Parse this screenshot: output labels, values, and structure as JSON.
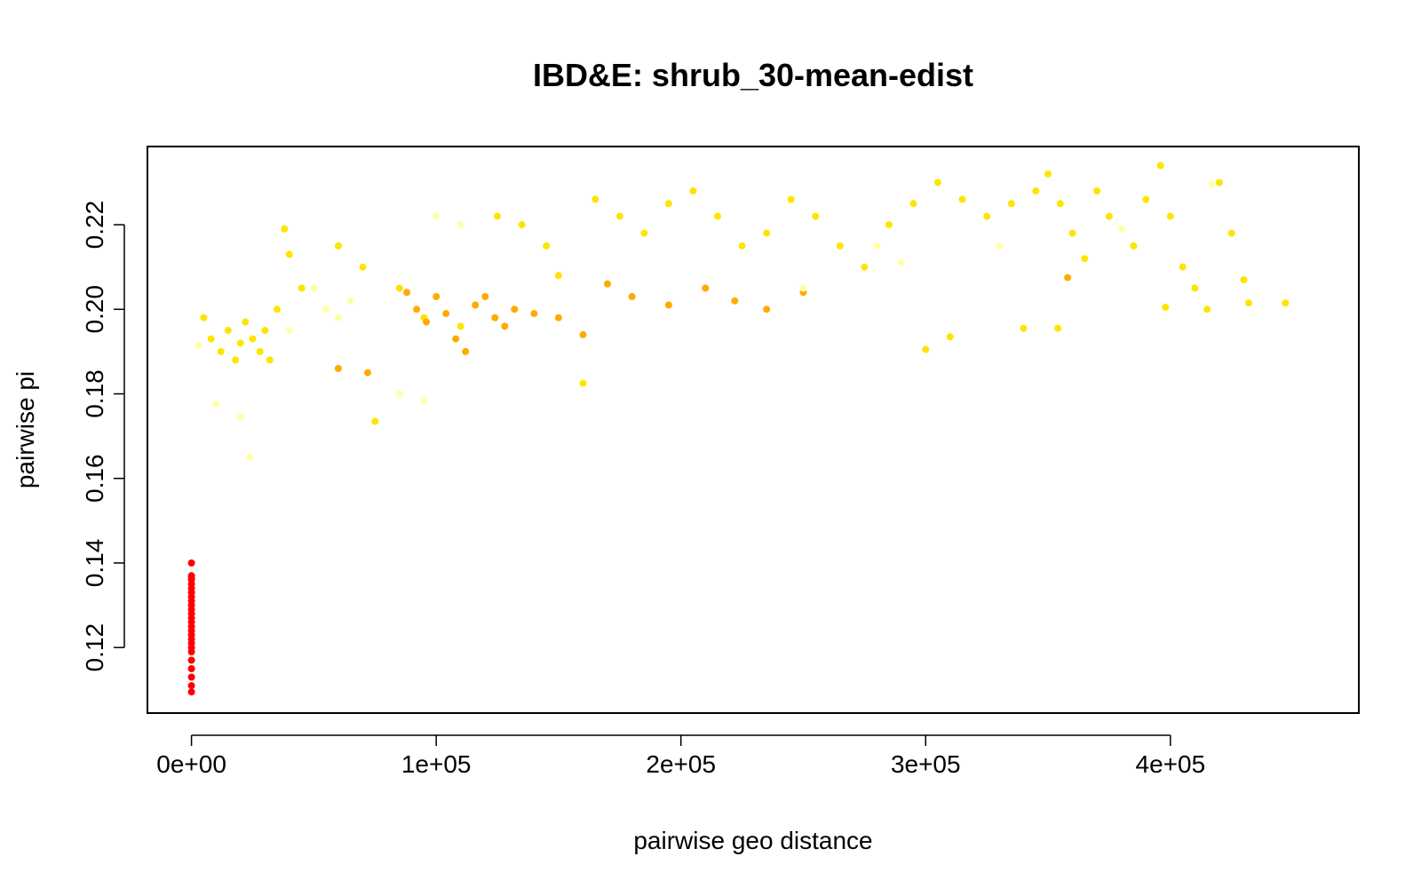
{
  "chart_data": {
    "type": "scatter",
    "title": "IBD&E: shrub_30-mean-edist",
    "xlabel": "pairwise geo distance",
    "ylabel": "pairwise pi",
    "xlim": [
      -18000,
      477000
    ],
    "ylim": [
      0.1045,
      0.2385
    ],
    "x_ticks": [
      0,
      100000,
      200000,
      300000,
      400000
    ],
    "x_tick_labels": [
      "0e+00",
      "1e+05",
      "2e+05",
      "3e+05",
      "4e+05"
    ],
    "y_ticks": [
      0.12,
      0.14,
      0.16,
      0.18,
      0.2,
      0.22
    ],
    "y_tick_labels": [
      "0.12",
      "0.14",
      "0.16",
      "0.18",
      "0.20",
      "0.22"
    ],
    "grid": false,
    "legend": "none",
    "color_scale": {
      "description": "yellow-to-red gradient by environmental distance",
      "colors": [
        "#ffffcc",
        "#ffff99",
        "#ffee00",
        "#ffd400",
        "#ffb000",
        "#ee8800",
        "#ff0000"
      ]
    },
    "series": [
      {
        "color": "#ff0000",
        "points": [
          [
            0,
            0.14
          ],
          [
            0,
            0.137
          ],
          [
            0,
            0.1365
          ],
          [
            0,
            0.136
          ],
          [
            0,
            0.135
          ],
          [
            0,
            0.134
          ],
          [
            0,
            0.133
          ],
          [
            0,
            0.132
          ],
          [
            0,
            0.131
          ],
          [
            0,
            0.13
          ],
          [
            0,
            0.129
          ],
          [
            0,
            0.128
          ],
          [
            0,
            0.127
          ],
          [
            0,
            0.126
          ],
          [
            0,
            0.125
          ],
          [
            0,
            0.124
          ],
          [
            0,
            0.123
          ],
          [
            0,
            0.122
          ],
          [
            0,
            0.121
          ],
          [
            0,
            0.12
          ],
          [
            0,
            0.119
          ],
          [
            0,
            0.117
          ],
          [
            0,
            0.115
          ],
          [
            0,
            0.113
          ],
          [
            0,
            0.111
          ],
          [
            0,
            0.1095
          ]
        ]
      },
      {
        "color": "#ffe400",
        "points": [
          [
            5000,
            0.198
          ],
          [
            8000,
            0.193
          ],
          [
            12000,
            0.19
          ],
          [
            15000,
            0.195
          ],
          [
            18000,
            0.188
          ],
          [
            20000,
            0.192
          ],
          [
            22000,
            0.197
          ],
          [
            25000,
            0.193
          ],
          [
            28000,
            0.19
          ],
          [
            30000,
            0.195
          ],
          [
            32000,
            0.188
          ],
          [
            35000,
            0.2
          ],
          [
            38000,
            0.219
          ],
          [
            40000,
            0.213
          ],
          [
            45000,
            0.205
          ],
          [
            60000,
            0.215
          ],
          [
            70000,
            0.21
          ],
          [
            75000,
            0.1735
          ],
          [
            85000,
            0.205
          ],
          [
            95000,
            0.198
          ],
          [
            110000,
            0.196
          ],
          [
            125000,
            0.222
          ],
          [
            135000,
            0.22
          ],
          [
            145000,
            0.215
          ],
          [
            150000,
            0.208
          ],
          [
            160000,
            0.1825
          ],
          [
            165000,
            0.226
          ],
          [
            175000,
            0.222
          ],
          [
            185000,
            0.218
          ],
          [
            195000,
            0.225
          ],
          [
            205000,
            0.228
          ],
          [
            215000,
            0.222
          ],
          [
            225000,
            0.215
          ],
          [
            235000,
            0.218
          ],
          [
            245000,
            0.226
          ],
          [
            255000,
            0.222
          ],
          [
            265000,
            0.215
          ],
          [
            275000,
            0.21
          ],
          [
            285000,
            0.22
          ],
          [
            295000,
            0.225
          ],
          [
            305000,
            0.23
          ],
          [
            315000,
            0.226
          ],
          [
            325000,
            0.222
          ],
          [
            335000,
            0.225
          ],
          [
            345000,
            0.228
          ],
          [
            350000,
            0.232
          ],
          [
            355000,
            0.225
          ],
          [
            360000,
            0.218
          ],
          [
            365000,
            0.212
          ],
          [
            370000,
            0.228
          ],
          [
            375000,
            0.222
          ],
          [
            385000,
            0.215
          ],
          [
            390000,
            0.226
          ],
          [
            396000,
            0.234
          ],
          [
            400000,
            0.222
          ],
          [
            405000,
            0.21
          ],
          [
            410000,
            0.205
          ],
          [
            415000,
            0.2
          ],
          [
            420000,
            0.23
          ],
          [
            425000,
            0.218
          ],
          [
            430000,
            0.207
          ],
          [
            432000,
            0.2015
          ],
          [
            447000,
            0.2015
          ],
          [
            398000,
            0.2005
          ],
          [
            354000,
            0.1955
          ],
          [
            340000,
            0.1955
          ],
          [
            310000,
            0.1935
          ],
          [
            300000,
            0.1905
          ]
        ]
      },
      {
        "color": "#ffaa00",
        "points": [
          [
            88000,
            0.204
          ],
          [
            92000,
            0.2
          ],
          [
            96000,
            0.197
          ],
          [
            100000,
            0.203
          ],
          [
            104000,
            0.199
          ],
          [
            108000,
            0.193
          ],
          [
            112000,
            0.19
          ],
          [
            116000,
            0.201
          ],
          [
            120000,
            0.203
          ],
          [
            124000,
            0.198
          ],
          [
            128000,
            0.196
          ],
          [
            132000,
            0.2
          ],
          [
            140000,
            0.199
          ],
          [
            150000,
            0.198
          ],
          [
            160000,
            0.194
          ],
          [
            170000,
            0.206
          ],
          [
            180000,
            0.203
          ],
          [
            195000,
            0.201
          ],
          [
            210000,
            0.205
          ],
          [
            222000,
            0.202
          ],
          [
            235000,
            0.2
          ],
          [
            250000,
            0.204
          ],
          [
            358000,
            0.2075
          ],
          [
            60000,
            0.186
          ],
          [
            72000,
            0.185
          ]
        ]
      },
      {
        "color": "#ffffaa",
        "points": [
          [
            3000,
            0.1915
          ],
          [
            10000,
            0.1775
          ],
          [
            20000,
            0.1745
          ],
          [
            24000,
            0.165
          ],
          [
            40000,
            0.195
          ],
          [
            50000,
            0.205
          ],
          [
            55000,
            0.2
          ],
          [
            60000,
            0.198
          ],
          [
            65000,
            0.202
          ],
          [
            85000,
            0.18
          ],
          [
            95000,
            0.1785
          ],
          [
            100000,
            0.222
          ],
          [
            110000,
            0.22
          ],
          [
            250000,
            0.205
          ],
          [
            280000,
            0.215
          ],
          [
            290000,
            0.211
          ],
          [
            330000,
            0.215
          ],
          [
            380000,
            0.219
          ],
          [
            417000,
            0.2295
          ]
        ]
      }
    ]
  }
}
